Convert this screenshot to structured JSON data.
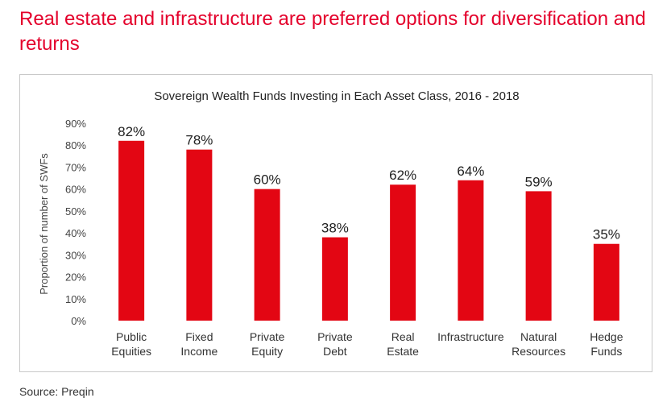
{
  "slide": {
    "title": "Real estate and infrastructure are preferred options for diversification and returns",
    "source": "Source: Preqin"
  },
  "colors": {
    "title": "#e4002b",
    "bar": "#e30613"
  },
  "chart_data": {
    "type": "bar",
    "title": "Sovereign Wealth Funds Investing in Each Asset Class, 2016 - 2018",
    "xlabel": "",
    "ylabel": "Proportion of number of SWFs",
    "ylim": [
      0,
      90
    ],
    "yticks": [
      "0%",
      "10%",
      "20%",
      "30%",
      "40%",
      "50%",
      "60%",
      "70%",
      "80%",
      "90%"
    ],
    "grid": false,
    "categories": [
      [
        "Public",
        "Equities"
      ],
      [
        "Fixed",
        "Income"
      ],
      [
        "Private",
        "Equity"
      ],
      [
        "Private",
        "Debt"
      ],
      [
        "Real",
        "Estate"
      ],
      [
        "Infrastructure"
      ],
      [
        "Natural",
        "Resources"
      ],
      [
        "Hedge",
        "Funds"
      ]
    ],
    "values": [
      82,
      78,
      60,
      38,
      62,
      64,
      59,
      35
    ],
    "value_labels": [
      "82%",
      "78%",
      "60%",
      "38%",
      "62%",
      "64%",
      "59%",
      "35%"
    ]
  }
}
